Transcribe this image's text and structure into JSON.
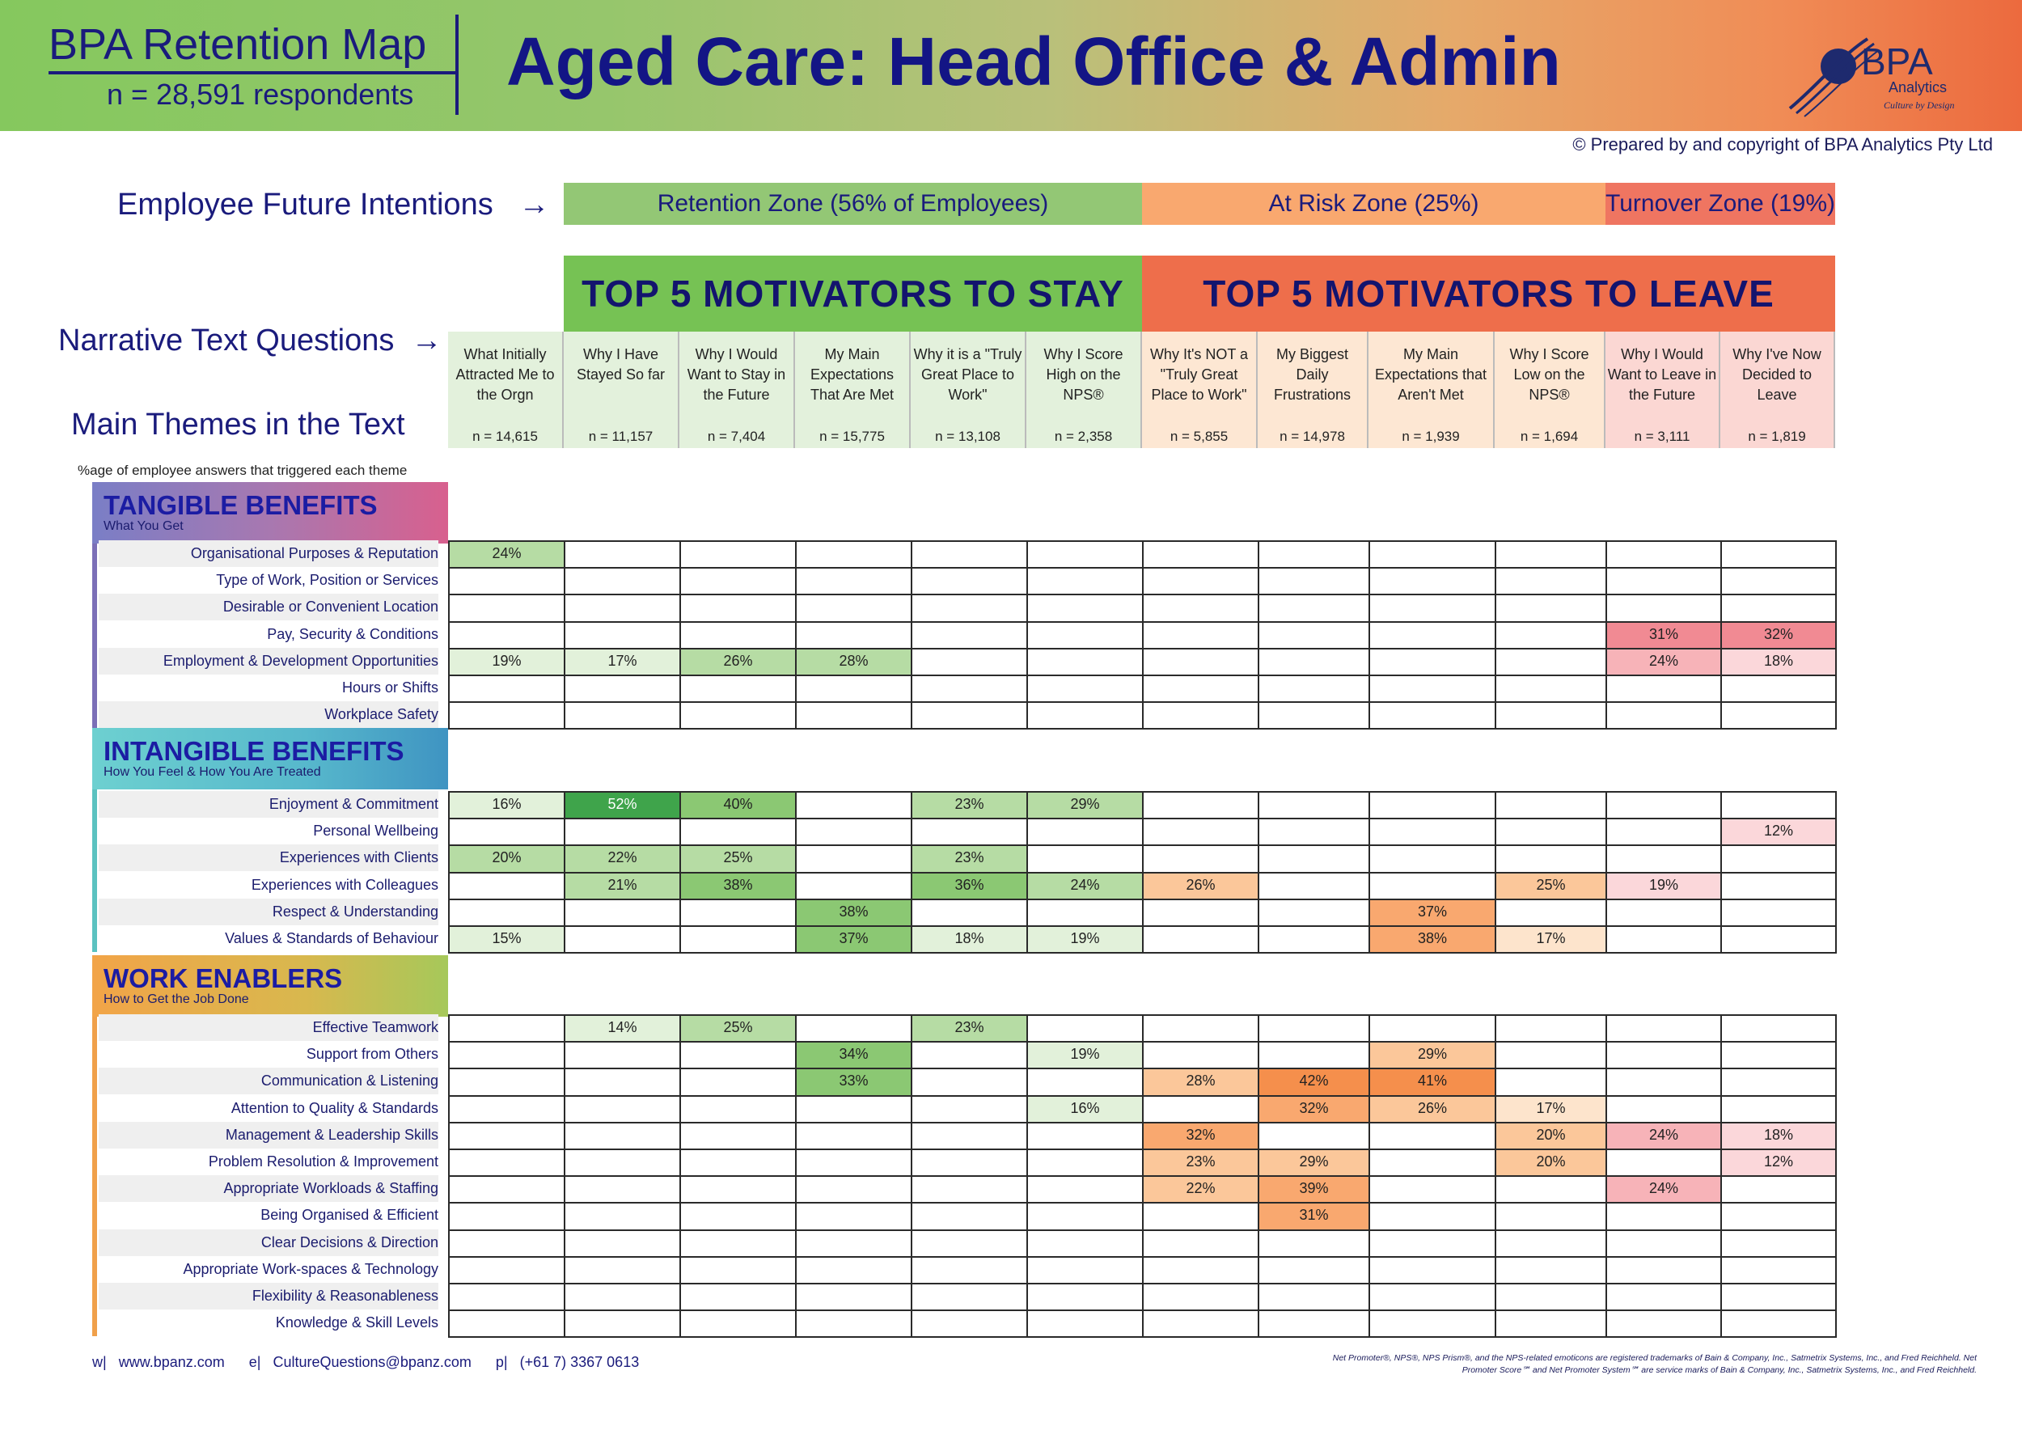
{
  "header": {
    "brand_title": "BPA Retention Map",
    "respondents": "n = 28,591 respondents",
    "main_title": "Aged Care: Head Office & Admin",
    "copyright": "© Prepared by and copyright of BPA Analytics Pty Ltd",
    "logo": {
      "name": "BPA",
      "sub": "Analytics",
      "tagline": "Culture by Design"
    }
  },
  "labels": {
    "future_intentions": "Employee Future Intentions",
    "narrative_questions": "Narrative Text Questions",
    "main_themes": "Main Themes in the Text",
    "pct_note": "%age of employee answers that triggered each theme",
    "arrow": "→"
  },
  "zones": [
    {
      "label": "Retention Zone (56% of Employees)",
      "value_pct": 56,
      "color": "#93c775"
    },
    {
      "label": "At Risk Zone (25%)",
      "value_pct": 25,
      "color": "#f9a86f"
    },
    {
      "label": "Turnover Zone (19%)",
      "value_pct": 19,
      "color": "#ef7561"
    }
  ],
  "top_headers": {
    "stay": {
      "label": "TOP 5 MOTIVATORS TO STAY",
      "color": "#76c254"
    },
    "leave": {
      "label": "TOP 5 MOTIVATORS TO LEAVE",
      "color": "#ee6e4b"
    }
  },
  "footer": {
    "w_label": "w|",
    "website": "www.bpanz.com",
    "e_label": "e|",
    "email": "CultureQuestions@bpanz.com",
    "p_label": "p|",
    "phone": "(+61 7) 3367 0613",
    "trademark": "Net Promoter®, NPS®, NPS Prism®, and the NPS-related emoticons are registered trademarks of Bain & Company, Inc., Satmetrix Systems, Inc., and Fred Reichheld. Net Promoter Score℠ and Net Promoter System℠ are service marks of Bain & Company, Inc., Satmetrix Systems, Inc., and Fred Reichheld."
  },
  "chart_data": {
    "type": "heatmap",
    "title": "Aged Care: Head Office & Admin",
    "columns": [
      {
        "q": "What Initially Attracted Me to the Orgn",
        "n": "n = 14,615",
        "group": "stay",
        "bg": "#e3f1dc"
      },
      {
        "q": "Why I Have Stayed So far",
        "n": "n = 11,157",
        "group": "stay",
        "bg": "#e3f1dc"
      },
      {
        "q": "Why I Would Want to Stay in the Future",
        "n": "n = 7,404",
        "group": "stay",
        "bg": "#e3f1dc"
      },
      {
        "q": "My Main Expectations That Are Met",
        "n": "n = 15,775",
        "group": "stay",
        "bg": "#e3f1dc"
      },
      {
        "q": "Why it is a \"Truly Great Place to Work\"",
        "n": "n = 13,108",
        "group": "stay",
        "bg": "#e3f1dc"
      },
      {
        "q": "Why I Score High on the NPS®",
        "n": "n = 2,358",
        "group": "stay",
        "bg": "#e3f1dc"
      },
      {
        "q": "Why It's NOT a \"Truly Great Place to Work\"",
        "n": "n = 5,855",
        "group": "leave",
        "bg": "#fde7d3"
      },
      {
        "q": "My Biggest Daily Frustrations",
        "n": "n = 14,978",
        "group": "leave",
        "bg": "#fde7d3"
      },
      {
        "q": "My Main Expectations that Aren't Met",
        "n": "n = 1,939",
        "group": "leave",
        "bg": "#fde7d3"
      },
      {
        "q": "Why I Score Low on the NPS®",
        "n": "n = 1,694",
        "group": "leave",
        "bg": "#fde7d3"
      },
      {
        "q": "Why I Would Want to Leave in the Future",
        "n": "n = 3,111",
        "group": "turnover",
        "bg": "#fbd7d3"
      },
      {
        "q": "Why I've Now Decided to Leave",
        "n": "n = 1,819",
        "group": "turnover",
        "bg": "#fbd7d3"
      }
    ],
    "sections": [
      {
        "title": "TANGIBLE BENEFITS",
        "subtitle": "What You Get",
        "bar_color": "#7b6fb7",
        "rows": [
          {
            "label": "Organisational Purposes & Reputation",
            "values": [
              24,
              null,
              null,
              null,
              null,
              null,
              null,
              null,
              null,
              null,
              null,
              null
            ]
          },
          {
            "label": "Type of Work, Position or Services",
            "values": [
              null,
              null,
              null,
              null,
              null,
              null,
              null,
              null,
              null,
              null,
              null,
              null
            ]
          },
          {
            "label": "Desirable or Convenient Location",
            "values": [
              null,
              null,
              null,
              null,
              null,
              null,
              null,
              null,
              null,
              null,
              null,
              null
            ]
          },
          {
            "label": "Pay, Security & Conditions",
            "values": [
              null,
              null,
              null,
              null,
              null,
              null,
              null,
              null,
              null,
              null,
              31,
              32
            ]
          },
          {
            "label": "Employment & Development Opportunities",
            "values": [
              19,
              17,
              26,
              28,
              null,
              null,
              null,
              null,
              null,
              null,
              24,
              18
            ]
          },
          {
            "label": "Hours or Shifts",
            "values": [
              null,
              null,
              null,
              null,
              null,
              null,
              null,
              null,
              null,
              null,
              null,
              null
            ]
          },
          {
            "label": "Workplace Safety",
            "values": [
              null,
              null,
              null,
              null,
              null,
              null,
              null,
              null,
              null,
              null,
              null,
              null
            ]
          }
        ]
      },
      {
        "title": "INTANGIBLE BENEFITS",
        "subtitle": "How You Feel & How You Are Treated",
        "bar_color": "#5bc2c0",
        "rows": [
          {
            "label": "Enjoyment & Commitment",
            "values": [
              16,
              52,
              40,
              null,
              23,
              29,
              null,
              null,
              null,
              null,
              null,
              null
            ]
          },
          {
            "label": "Personal Wellbeing",
            "values": [
              null,
              null,
              null,
              null,
              null,
              null,
              null,
              null,
              null,
              null,
              null,
              12
            ]
          },
          {
            "label": "Experiences with Clients",
            "values": [
              20,
              22,
              25,
              null,
              23,
              null,
              null,
              null,
              null,
              null,
              null,
              null
            ]
          },
          {
            "label": "Experiences with Colleagues",
            "values": [
              null,
              21,
              38,
              null,
              36,
              24,
              26,
              null,
              null,
              25,
              19,
              null
            ]
          },
          {
            "label": "Respect & Understanding",
            "values": [
              null,
              null,
              null,
              38,
              null,
              null,
              null,
              null,
              37,
              null,
              null,
              null
            ]
          },
          {
            "label": "Values & Standards of Behaviour",
            "values": [
              15,
              null,
              null,
              37,
              18,
              19,
              null,
              null,
              38,
              17,
              null,
              null
            ]
          }
        ]
      },
      {
        "title": "WORK ENABLERS",
        "subtitle": "How to Get the Job Done",
        "bar_color": "#f0a04a",
        "rows": [
          {
            "label": "Effective Teamwork",
            "values": [
              null,
              14,
              25,
              null,
              23,
              null,
              null,
              null,
              null,
              null,
              null,
              null
            ]
          },
          {
            "label": "Support from Others",
            "values": [
              null,
              null,
              null,
              34,
              null,
              19,
              null,
              null,
              29,
              null,
              null,
              null
            ]
          },
          {
            "label": "Communication & Listening",
            "values": [
              null,
              null,
              null,
              33,
              null,
              null,
              28,
              42,
              41,
              null,
              null,
              null
            ]
          },
          {
            "label": "Attention to Quality & Standards",
            "values": [
              null,
              null,
              null,
              null,
              null,
              16,
              null,
              32,
              26,
              17,
              null,
              null
            ]
          },
          {
            "label": "Management & Leadership Skills",
            "values": [
              null,
              null,
              null,
              null,
              null,
              null,
              32,
              null,
              null,
              20,
              24,
              18
            ]
          },
          {
            "label": "Problem Resolution & Improvement",
            "values": [
              null,
              null,
              null,
              null,
              null,
              null,
              23,
              29,
              null,
              20,
              null,
              12
            ]
          },
          {
            "label": "Appropriate Workloads & Staffing",
            "values": [
              null,
              null,
              null,
              null,
              null,
              null,
              22,
              39,
              null,
              null,
              24,
              null
            ]
          },
          {
            "label": "Being Organised & Efficient",
            "values": [
              null,
              null,
              null,
              null,
              null,
              null,
              null,
              31,
              null,
              null,
              null,
              null
            ]
          },
          {
            "label": "Clear Decisions & Direction",
            "values": [
              null,
              null,
              null,
              null,
              null,
              null,
              null,
              null,
              null,
              null,
              null,
              null
            ]
          },
          {
            "label": "Appropriate Work-spaces & Technology",
            "values": [
              null,
              null,
              null,
              null,
              null,
              null,
              null,
              null,
              null,
              null,
              null,
              null
            ]
          },
          {
            "label": "Flexibility & Reasonableness",
            "values": [
              null,
              null,
              null,
              null,
              null,
              null,
              null,
              null,
              null,
              null,
              null,
              null
            ]
          },
          {
            "label": "Knowledge & Skill Levels",
            "values": [
              null,
              null,
              null,
              null,
              null,
              null,
              null,
              null,
              null,
              null,
              null,
              null
            ]
          }
        ]
      }
    ],
    "value_format": "percent",
    "colors": {
      "stay": [
        "#e2f1da",
        "#b6dca4",
        "#8bc873",
        "#3fa44b"
      ],
      "leave": [
        "#fde4cc",
        "#fbc79a",
        "#f9a86f",
        "#f58f4c"
      ],
      "turnover": [
        "#fbd7da",
        "#f7b3b8",
        "#f18a93",
        "#ec6c75"
      ]
    }
  }
}
